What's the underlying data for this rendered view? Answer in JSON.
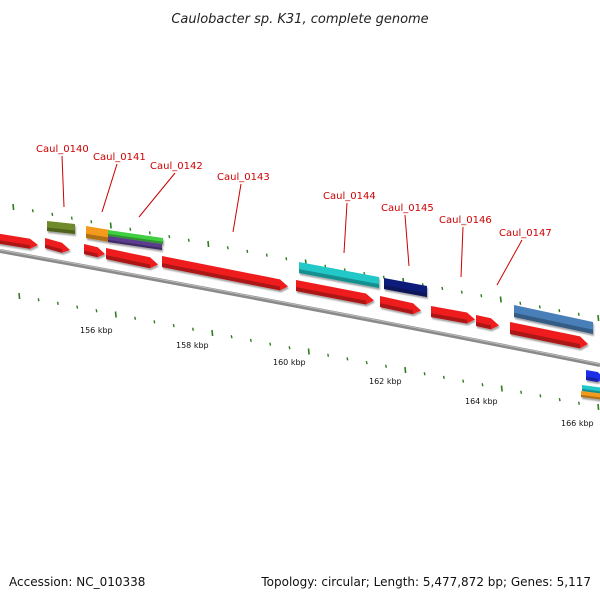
{
  "title": "Caulobacter sp. K31, complete genome",
  "footer": {
    "accession": "Accession: NC_010338",
    "summary": "Topology: circular; Length: 5,477,872 bp; Genes: 5,117"
  },
  "gene_labels": [
    "Caul_0140",
    "Caul_0141",
    "Caul_0142",
    "Caul_0143",
    "Caul_0144",
    "Caul_0145",
    "Caul_0146",
    "Caul_0147"
  ],
  "ruler_labels": [
    "156 kbp",
    "158 kbp",
    "160 kbp",
    "162 kbp",
    "164 kbp",
    "166 kbp"
  ],
  "colors": {
    "gene_forward": "#ee1c1c",
    "label_red": "#cc0000",
    "backbone": "#8a8a8a",
    "tick_green": "#2e7d1e",
    "olive": "#6e8a2a",
    "orange": "#f39a1e",
    "green": "#3fcf3f",
    "purple": "#5a3d8c",
    "cyan": "#22c7c7",
    "navy": "#101a7a",
    "steel_blue": "#4a7fb8",
    "blue": "#1f2fe8"
  }
}
